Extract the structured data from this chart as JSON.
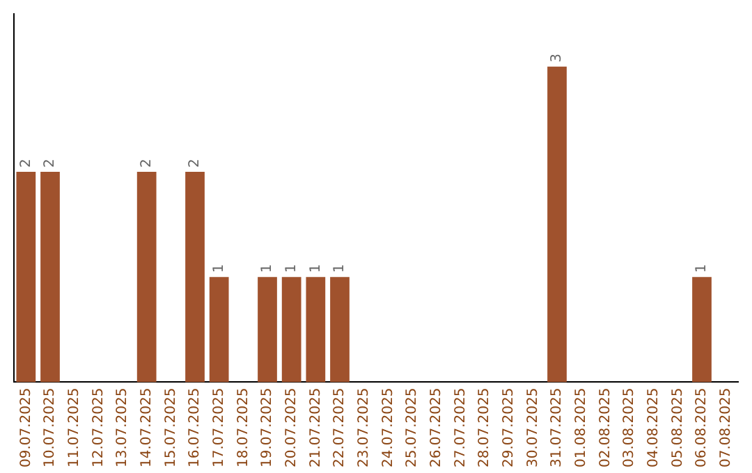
{
  "chart_data": {
    "type": "bar",
    "categories": [
      "09.07.2025",
      "10.07.2025",
      "11.07.2025",
      "12.07.2025",
      "13.07.2025",
      "14.07.2025",
      "15.07.2025",
      "16.07.2025",
      "17.07.2025",
      "18.07.2025",
      "19.07.2025",
      "20.07.2025",
      "21.07.2025",
      "22.07.2025",
      "23.07.2025",
      "24.07.2025",
      "25.07.2025",
      "26.07.2025",
      "27.07.2025",
      "28.07.2025",
      "29.07.2025",
      "30.07.2025",
      "31.07.2025",
      "01.08.2025",
      "02.08.2025",
      "03.08.2025",
      "04.08.2025",
      "05.08.2025",
      "06.08.2025",
      "07.08.2025"
    ],
    "values": [
      2,
      2,
      0,
      0,
      0,
      2,
      0,
      2,
      1,
      0,
      1,
      1,
      1,
      1,
      0,
      0,
      0,
      0,
      0,
      0,
      0,
      0,
      3,
      0,
      0,
      0,
      0,
      0,
      1,
      0
    ],
    "value_labels": [
      "2",
      "2",
      null,
      null,
      null,
      "2",
      null,
      "2",
      "1",
      null,
      "1",
      "1",
      "1",
      "1",
      null,
      null,
      null,
      null,
      null,
      null,
      null,
      null,
      "3",
      null,
      null,
      null,
      null,
      null,
      "1",
      null
    ],
    "color": "#a0522d",
    "grid": false,
    "legend": false,
    "tick_labels": "x"
  }
}
